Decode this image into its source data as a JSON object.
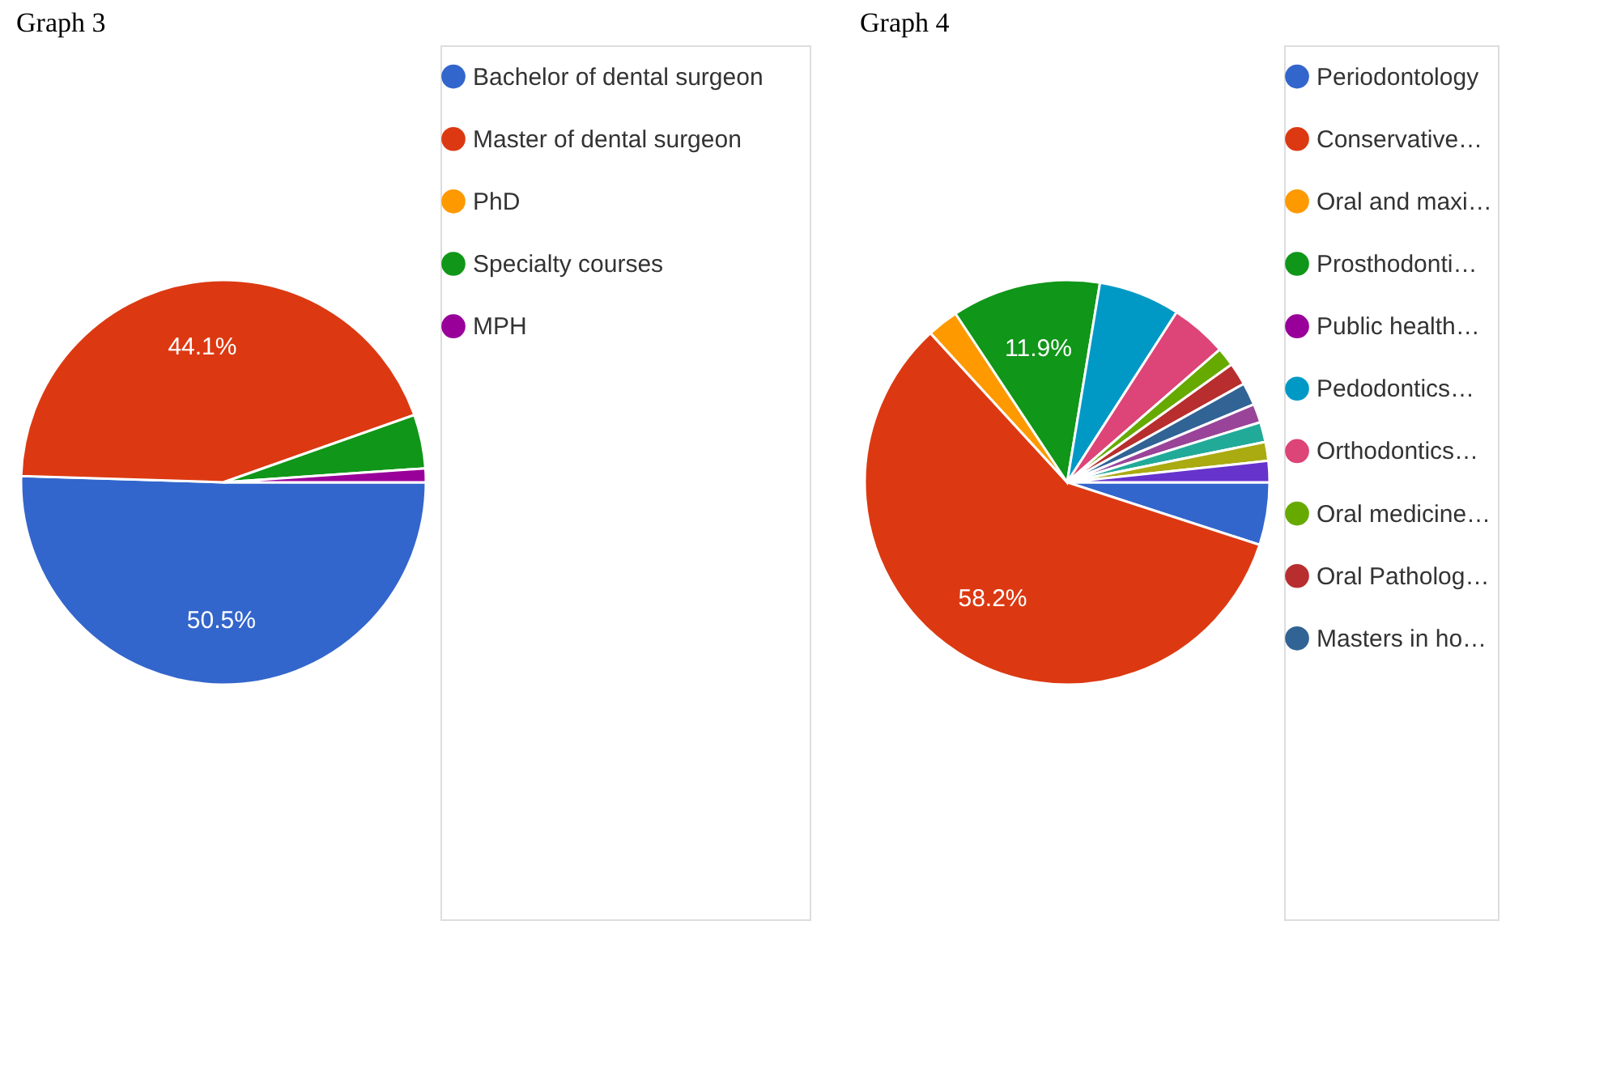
{
  "chart_data": [
    {
      "type": "pie",
      "title": "Graph 3",
      "legend": "right",
      "categories": [
        "Bachelor of dental surgeon",
        "Master of dental surgeon",
        "PhD",
        "Specialty courses",
        "MPH"
      ],
      "values": [
        50.5,
        44.1,
        0,
        4.3,
        1.1
      ],
      "value_labels": [
        "50.5%",
        "44.1%",
        null,
        null,
        null
      ],
      "colors": [
        "#3366cc",
        "#dc3912",
        "#ff9900",
        "#109618",
        "#990099"
      ]
    },
    {
      "type": "pie",
      "title": "Graph 4",
      "legend": "right",
      "categories": [
        "Periodontology",
        "Conservative…",
        "Oral and maxi…",
        "Prosthodonti…",
        "Public health…",
        "Pedodontics…",
        "Orthodontics…",
        "Oral medicine…",
        "Oral Patholog…",
        "Masters in ho…",
        null,
        null,
        null,
        null
      ],
      "values": [
        5.0,
        58.2,
        2.5,
        11.9,
        0,
        6.5,
        4.5,
        1.5,
        1.8,
        1.8,
        1.5,
        1.6,
        1.5,
        1.7
      ],
      "value_labels": [
        null,
        "58.2%",
        null,
        "11.9%",
        null,
        null,
        null,
        null,
        null,
        null,
        null,
        null,
        null,
        null
      ],
      "colors": [
        "#3366cc",
        "#dc3912",
        "#ff9900",
        "#109618",
        "#990099",
        "#0099c6",
        "#dd4477",
        "#66aa00",
        "#b82e2e",
        "#316395",
        "#994499",
        "#22aa99",
        "#aaaa11",
        "#6633cc"
      ]
    }
  ]
}
